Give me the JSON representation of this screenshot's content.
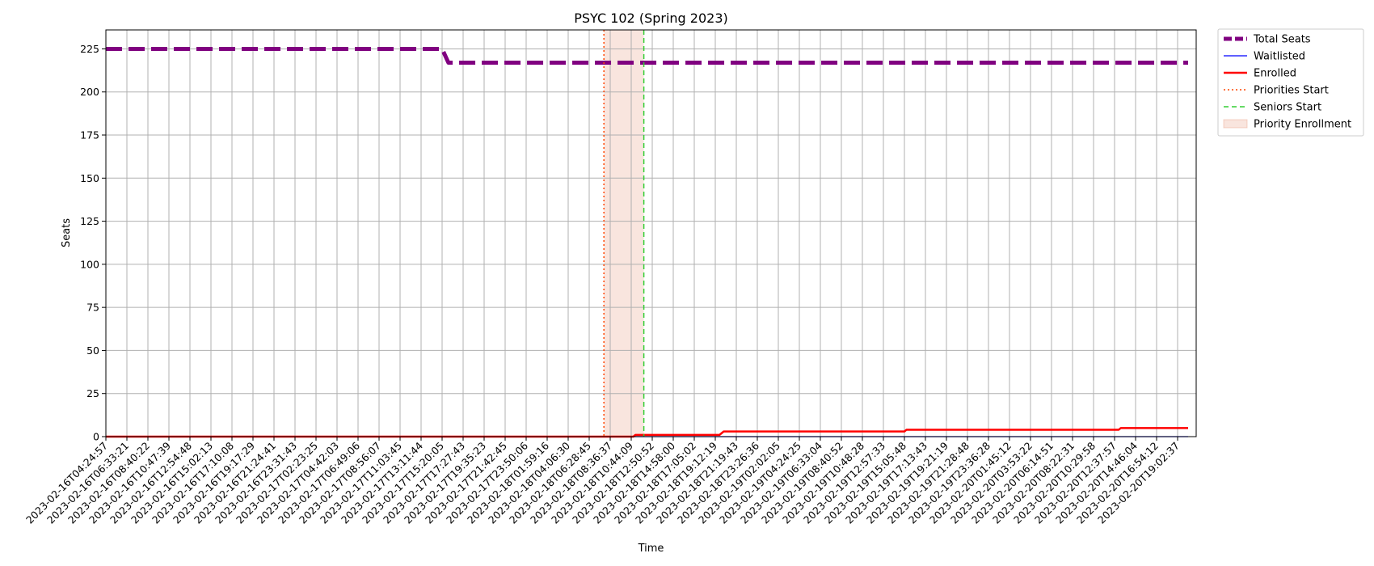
{
  "chart_data": {
    "type": "line",
    "title": "PSYC 102 (Spring 2023)",
    "xlabel": "Time",
    "ylabel": "Seats",
    "ylim": [
      0,
      236
    ],
    "yticks": [
      0,
      25,
      50,
      75,
      100,
      125,
      150,
      175,
      200,
      225
    ],
    "grid": true,
    "legend_position": "outside-top-right",
    "x_ticks": [
      "2023-02-16T04:24:57",
      "2023-02-16T06:33:21",
      "2023-02-16T08:40:22",
      "2023-02-16T10:47:39",
      "2023-02-16T12:54:48",
      "2023-02-16T15:02:13",
      "2023-02-16T17:10:08",
      "2023-02-16T19:17:29",
      "2023-02-16T21:24:41",
      "2023-02-16T23:31:43",
      "2023-02-17T02:23:25",
      "2023-02-17T04:42:03",
      "2023-02-17T06:49:06",
      "2023-02-17T08:56:07",
      "2023-02-17T11:03:45",
      "2023-02-17T13:11:44",
      "2023-02-17T15:20:05",
      "2023-02-17T17:27:43",
      "2023-02-17T19:35:23",
      "2023-02-17T21:42:45",
      "2023-02-17T23:50:06",
      "2023-02-18T01:59:16",
      "2023-02-18T04:06:30",
      "2023-02-18T06:28:45",
      "2023-02-18T08:36:37",
      "2023-02-18T10:44:09",
      "2023-02-18T12:50:52",
      "2023-02-18T14:58:00",
      "2023-02-18T17:05:02",
      "2023-02-18T19:12:19",
      "2023-02-18T21:19:43",
      "2023-02-18T23:26:36",
      "2023-02-19T02:02:05",
      "2023-02-19T04:24:25",
      "2023-02-19T06:33:04",
      "2023-02-19T08:40:52",
      "2023-02-19T10:48:28",
      "2023-02-19T12:57:33",
      "2023-02-19T15:05:48",
      "2023-02-19T17:13:43",
      "2023-02-19T19:21:19",
      "2023-02-19T21:28:48",
      "2023-02-19T23:36:28",
      "2023-02-20T01:45:12",
      "2023-02-20T03:53:22",
      "2023-02-20T06:14:51",
      "2023-02-20T08:22:31",
      "2023-02-20T10:29:58",
      "2023-02-20T12:37:57",
      "2023-02-20T14:46:04",
      "2023-02-20T16:54:12",
      "2023-02-20T19:02:37"
    ],
    "x_range": [
      0,
      51.5
    ],
    "series": [
      {
        "name": "Total Seats",
        "color": "#800080",
        "style": "dashed-thick",
        "points": [
          [
            0,
            225
          ],
          [
            16.0,
            225
          ],
          [
            16.3,
            217
          ],
          [
            51.5,
            217
          ]
        ]
      },
      {
        "name": "Waitlisted",
        "color": "#0000ff",
        "style": "solid-thin",
        "points": [
          [
            0,
            0
          ],
          [
            51.5,
            0
          ]
        ]
      },
      {
        "name": "Enrolled",
        "color": "#ff0000",
        "style": "solid",
        "points": [
          [
            0,
            0
          ],
          [
            25.1,
            0
          ],
          [
            25.2,
            1
          ],
          [
            29.2,
            1
          ],
          [
            29.4,
            3
          ],
          [
            38.0,
            3
          ],
          [
            38.1,
            4
          ],
          [
            48.2,
            4
          ],
          [
            48.3,
            5
          ],
          [
            51.5,
            5
          ]
        ]
      }
    ],
    "vertical_lines": [
      {
        "name": "Priorities Start",
        "x": 23.7,
        "color": "#ff4500",
        "style": "dotted"
      },
      {
        "name": "Seniors Start",
        "x": 25.6,
        "color": "#32cd32",
        "style": "dashed"
      }
    ],
    "shaded_regions": [
      {
        "name": "Priority Enrollment",
        "x_start": 23.7,
        "x_end": 25.6,
        "color": "#e9967a",
        "opacity": 0.25
      }
    ],
    "legend": [
      "Total Seats",
      "Waitlisted",
      "Enrolled",
      "Priorities Start",
      "Seniors Start",
      "Priority Enrollment"
    ]
  }
}
